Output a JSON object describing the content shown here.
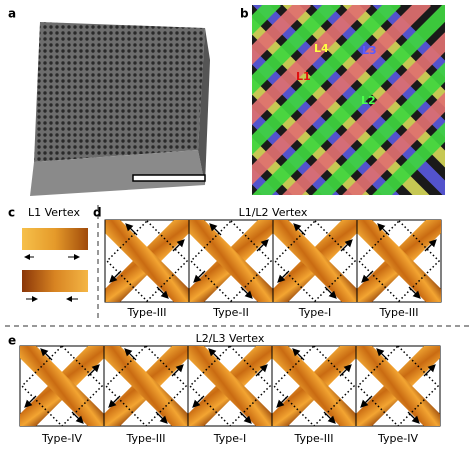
{
  "panels": {
    "a": {
      "label": "a"
    },
    "b": {
      "label": "b",
      "layers": [
        "L1",
        "L2",
        "L3",
        "L4"
      ]
    },
    "c": {
      "label": "c",
      "title": "L1 Vertex"
    },
    "d": {
      "label": "d",
      "title": "L1/L2 Vertex",
      "types": [
        "Type-III",
        "Type-II",
        "Type-I",
        "Type-III"
      ]
    },
    "e": {
      "label": "e",
      "title": "L2/L3 Vertex",
      "types": [
        "Type-IV",
        "Type-III",
        "Type-I",
        "Type-III",
        "Type-IV"
      ]
    }
  }
}
